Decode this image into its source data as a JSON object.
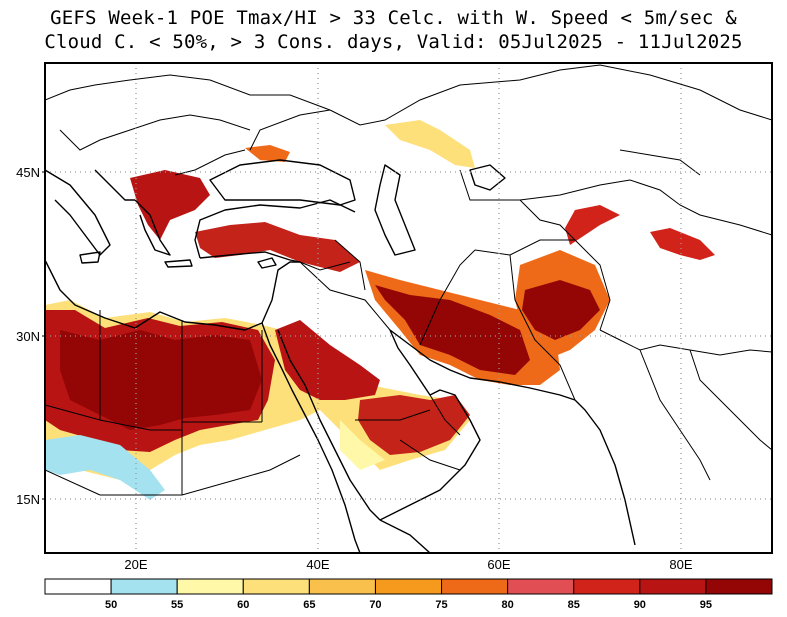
{
  "title": {
    "line1": "GEFS Week-1 POE Tmax/HI > 33 Celc. with W. Speed < 5m/sec &",
    "line2": "Cloud C. < 50%, > 3 Cons. days, Valid: 05Jul2025 - 11Jul2025"
  },
  "map": {
    "projection": "lat-lon",
    "lon_range": [
      10,
      90
    ],
    "lat_range": [
      10,
      55
    ],
    "grid": "dotted",
    "x_ticks": [
      {
        "lon": 20,
        "label": "20E"
      },
      {
        "lon": 40,
        "label": "40E"
      },
      {
        "lon": 60,
        "label": "60E"
      },
      {
        "lon": 80,
        "label": "80E"
      }
    ],
    "y_ticks": [
      {
        "lat": 45,
        "label": "45N"
      },
      {
        "lat": 30,
        "label": "30N"
      },
      {
        "lat": 15,
        "label": "15N"
      }
    ],
    "regions": [
      {
        "name": "sahara-libya-egypt",
        "level": 95,
        "lon": [
          10,
          33.5
        ],
        "lat": [
          20,
          31
        ]
      },
      {
        "name": "nile-egypt",
        "level": 95,
        "lon": [
          29,
          35
        ],
        "lat": [
          20,
          31
        ]
      },
      {
        "name": "arabia-north",
        "level": 95,
        "lon": [
          35,
          46
        ],
        "lat": [
          22,
          32
        ]
      },
      {
        "name": "arabia-south",
        "level": 90,
        "lon": [
          42,
          57
        ],
        "lat": [
          16,
          24
        ]
      },
      {
        "name": "iran",
        "level": 95,
        "lon": [
          44,
          61
        ],
        "lat": [
          25,
          33
        ]
      },
      {
        "name": "afghanistan-pakistan",
        "level": 95,
        "lon": [
          61,
          72
        ],
        "lat": [
          24,
          34
        ]
      },
      {
        "name": "turkey-south",
        "level": 90,
        "lon": [
          28,
          45
        ],
        "lat": [
          36,
          39
        ]
      },
      {
        "name": "balkans",
        "level": 90,
        "lon": [
          19,
          28
        ],
        "lat": [
          38,
          46
        ]
      },
      {
        "name": "tarim",
        "level": 90,
        "lon": [
          80,
          87
        ],
        "lat": [
          37,
          40
        ]
      }
    ]
  },
  "colorbar": {
    "colors": [
      "#ffffff",
      "#a4e2f0",
      "#fff8a8",
      "#fde07a",
      "#f9c04c",
      "#f59a1c",
      "#ee6a18",
      "#e14f54",
      "#d2231a",
      "#b81414",
      "#940505"
    ],
    "labels": [
      "50",
      "55",
      "60",
      "65",
      "70",
      "75",
      "80",
      "85",
      "90",
      "95"
    ]
  }
}
